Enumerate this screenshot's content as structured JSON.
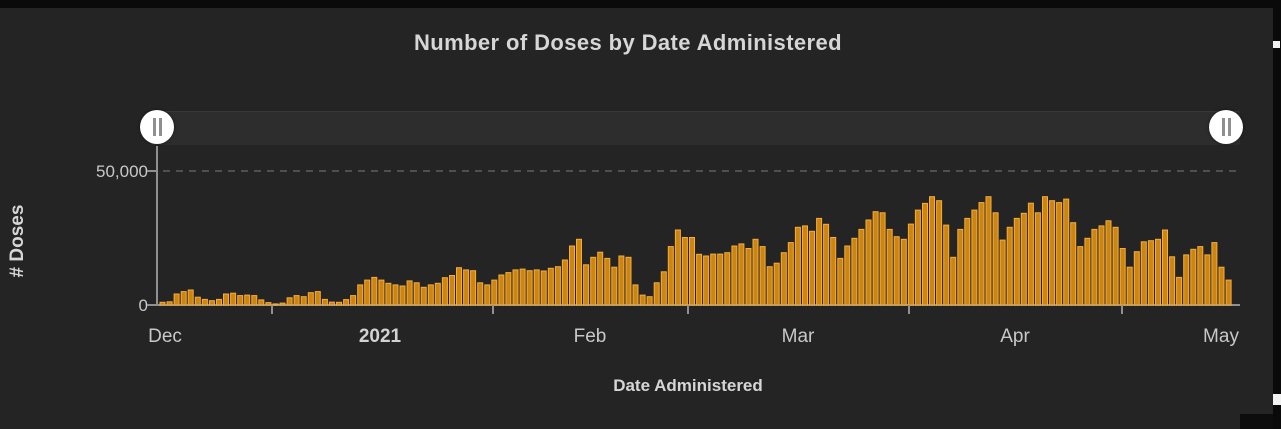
{
  "title": "Number of Doses by Date Administered",
  "y_axis": {
    "label": "# Doses",
    "tick_max_label": "50,000",
    "tick_zero_label": "0"
  },
  "x_axis": {
    "label": "Date Administered",
    "months": [
      {
        "label": "Dec",
        "emphasis": false
      },
      {
        "label": "2021",
        "emphasis": true
      },
      {
        "label": "Feb",
        "emphasis": false
      },
      {
        "label": "Mar",
        "emphasis": false
      },
      {
        "label": "Apr",
        "emphasis": false
      },
      {
        "label": "May",
        "emphasis": false
      }
    ]
  },
  "slider": {
    "left_handle_icon": "pause-icon",
    "right_handle_icon": "pause-icon"
  },
  "colors": {
    "background": "#242424",
    "frame": "#0a0a0a",
    "bar_fill": "#cc8610",
    "bar_stroke": "#f6ac3e",
    "axis_line": "#909090",
    "gridline": "#4f4f4f",
    "title_text": "#d6d6d6",
    "tick_text": "#c8c8c8",
    "slider_track": "#2d2d2d",
    "slider_handle": "#ffffff"
  },
  "chart_data": {
    "type": "bar",
    "title": "Number of Doses by Date Administered",
    "xlabel": "Date Administered",
    "ylabel": "# Doses",
    "ylim": [
      0,
      50000
    ],
    "grid": "dashed horizontal line at 50,000 only",
    "legend": "none",
    "x_start_date": "2020-12-16",
    "x_end_date": "2021-05-16",
    "dates": [
      "2020-12-16",
      "2020-12-17",
      "2020-12-18",
      "2020-12-19",
      "2020-12-20",
      "2020-12-21",
      "2020-12-22",
      "2020-12-23",
      "2020-12-24",
      "2020-12-25",
      "2020-12-26",
      "2020-12-27",
      "2020-12-28",
      "2020-12-29",
      "2020-12-30",
      "2020-12-31",
      "2021-01-01",
      "2021-01-02",
      "2021-01-03",
      "2021-01-04",
      "2021-01-05",
      "2021-01-06",
      "2021-01-07",
      "2021-01-08",
      "2021-01-09",
      "2021-01-10",
      "2021-01-11",
      "2021-01-12",
      "2021-01-13",
      "2021-01-14",
      "2021-01-15",
      "2021-01-16",
      "2021-01-17",
      "2021-01-18",
      "2021-01-19",
      "2021-01-20",
      "2021-01-21",
      "2021-01-22",
      "2021-01-23",
      "2021-01-24",
      "2021-01-25",
      "2021-01-26",
      "2021-01-27",
      "2021-01-28",
      "2021-01-29",
      "2021-01-30",
      "2021-01-31",
      "2021-02-01",
      "2021-02-02",
      "2021-02-03",
      "2021-02-04",
      "2021-02-05",
      "2021-02-06",
      "2021-02-07",
      "2021-02-08",
      "2021-02-09",
      "2021-02-10",
      "2021-02-11",
      "2021-02-12",
      "2021-02-13",
      "2021-02-14",
      "2021-02-15",
      "2021-02-16",
      "2021-02-17",
      "2021-02-18",
      "2021-02-19",
      "2021-02-20",
      "2021-02-21",
      "2021-02-22",
      "2021-02-23",
      "2021-02-24",
      "2021-02-25",
      "2021-02-26",
      "2021-02-27",
      "2021-02-28",
      "2021-03-01",
      "2021-03-02",
      "2021-03-03",
      "2021-03-04",
      "2021-03-05",
      "2021-03-06",
      "2021-03-07",
      "2021-03-08",
      "2021-03-09",
      "2021-03-10",
      "2021-03-11",
      "2021-03-12",
      "2021-03-13",
      "2021-03-14",
      "2021-03-15",
      "2021-03-16",
      "2021-03-17",
      "2021-03-18",
      "2021-03-19",
      "2021-03-20",
      "2021-03-21",
      "2021-03-22",
      "2021-03-23",
      "2021-03-24",
      "2021-03-25",
      "2021-03-26",
      "2021-03-27",
      "2021-03-28",
      "2021-03-29",
      "2021-03-30",
      "2021-03-31",
      "2021-04-01",
      "2021-04-02",
      "2021-04-03",
      "2021-04-04",
      "2021-04-05",
      "2021-04-06",
      "2021-04-07",
      "2021-04-08",
      "2021-04-09",
      "2021-04-10",
      "2021-04-11",
      "2021-04-12",
      "2021-04-13",
      "2021-04-14",
      "2021-04-15",
      "2021-04-16",
      "2021-04-17",
      "2021-04-18",
      "2021-04-19",
      "2021-04-20",
      "2021-04-21",
      "2021-04-22",
      "2021-04-23",
      "2021-04-24",
      "2021-04-25",
      "2021-04-26",
      "2021-04-27",
      "2021-04-28",
      "2021-04-29",
      "2021-04-30",
      "2021-05-01",
      "2021-05-02",
      "2021-05-03",
      "2021-05-04",
      "2021-05-05",
      "2021-05-06",
      "2021-05-07",
      "2021-05-08",
      "2021-05-09",
      "2021-05-10",
      "2021-05-11",
      "2021-05-12",
      "2021-05-13",
      "2021-05-14",
      "2021-05-15",
      "2021-05-16"
    ],
    "values": [
      1000,
      1200,
      4100,
      5000,
      5600,
      2900,
      2100,
      1600,
      2100,
      4100,
      4400,
      3500,
      3700,
      3500,
      1900,
      900,
      400,
      700,
      2700,
      3500,
      3100,
      4600,
      5000,
      2100,
      1100,
      1000,
      2000,
      3500,
      7500,
      9300,
      10300,
      9300,
      8100,
      7500,
      7100,
      9000,
      8300,
      6600,
      7500,
      8100,
      10200,
      11000,
      13900,
      13100,
      12800,
      8300,
      7500,
      9300,
      11200,
      12100,
      13100,
      13400,
      12800,
      13100,
      12700,
      13700,
      14300,
      16800,
      22000,
      24500,
      15000,
      17800,
      19700,
      17400,
      14100,
      18300,
      17800,
      7500,
      3700,
      3100,
      8300,
      12400,
      21800,
      28000,
      25200,
      25200,
      18900,
      18300,
      19000,
      19000,
      19500,
      22000,
      22800,
      21100,
      24500,
      21800,
      14300,
      15600,
      19500,
      23300,
      29000,
      29500,
      27500,
      32300,
      30100,
      25200,
      17400,
      22000,
      24900,
      28200,
      31700,
      34800,
      34400,
      28200,
      25500,
      24500,
      30200,
      35400,
      37900,
      40400,
      38900,
      29800,
      17800,
      28200,
      32300,
      35400,
      38200,
      40400,
      34400,
      24200,
      29000,
      32300,
      34200,
      38000,
      34400,
      40400,
      38900,
      38200,
      39500,
      30700,
      21800,
      24900,
      28200,
      29500,
      31400,
      29000,
      21100,
      14100,
      19900,
      23600,
      24000,
      24500,
      28000,
      18000,
      10300,
      18700,
      20800,
      21800,
      18700,
      23300,
      14100,
      9300
    ]
  }
}
